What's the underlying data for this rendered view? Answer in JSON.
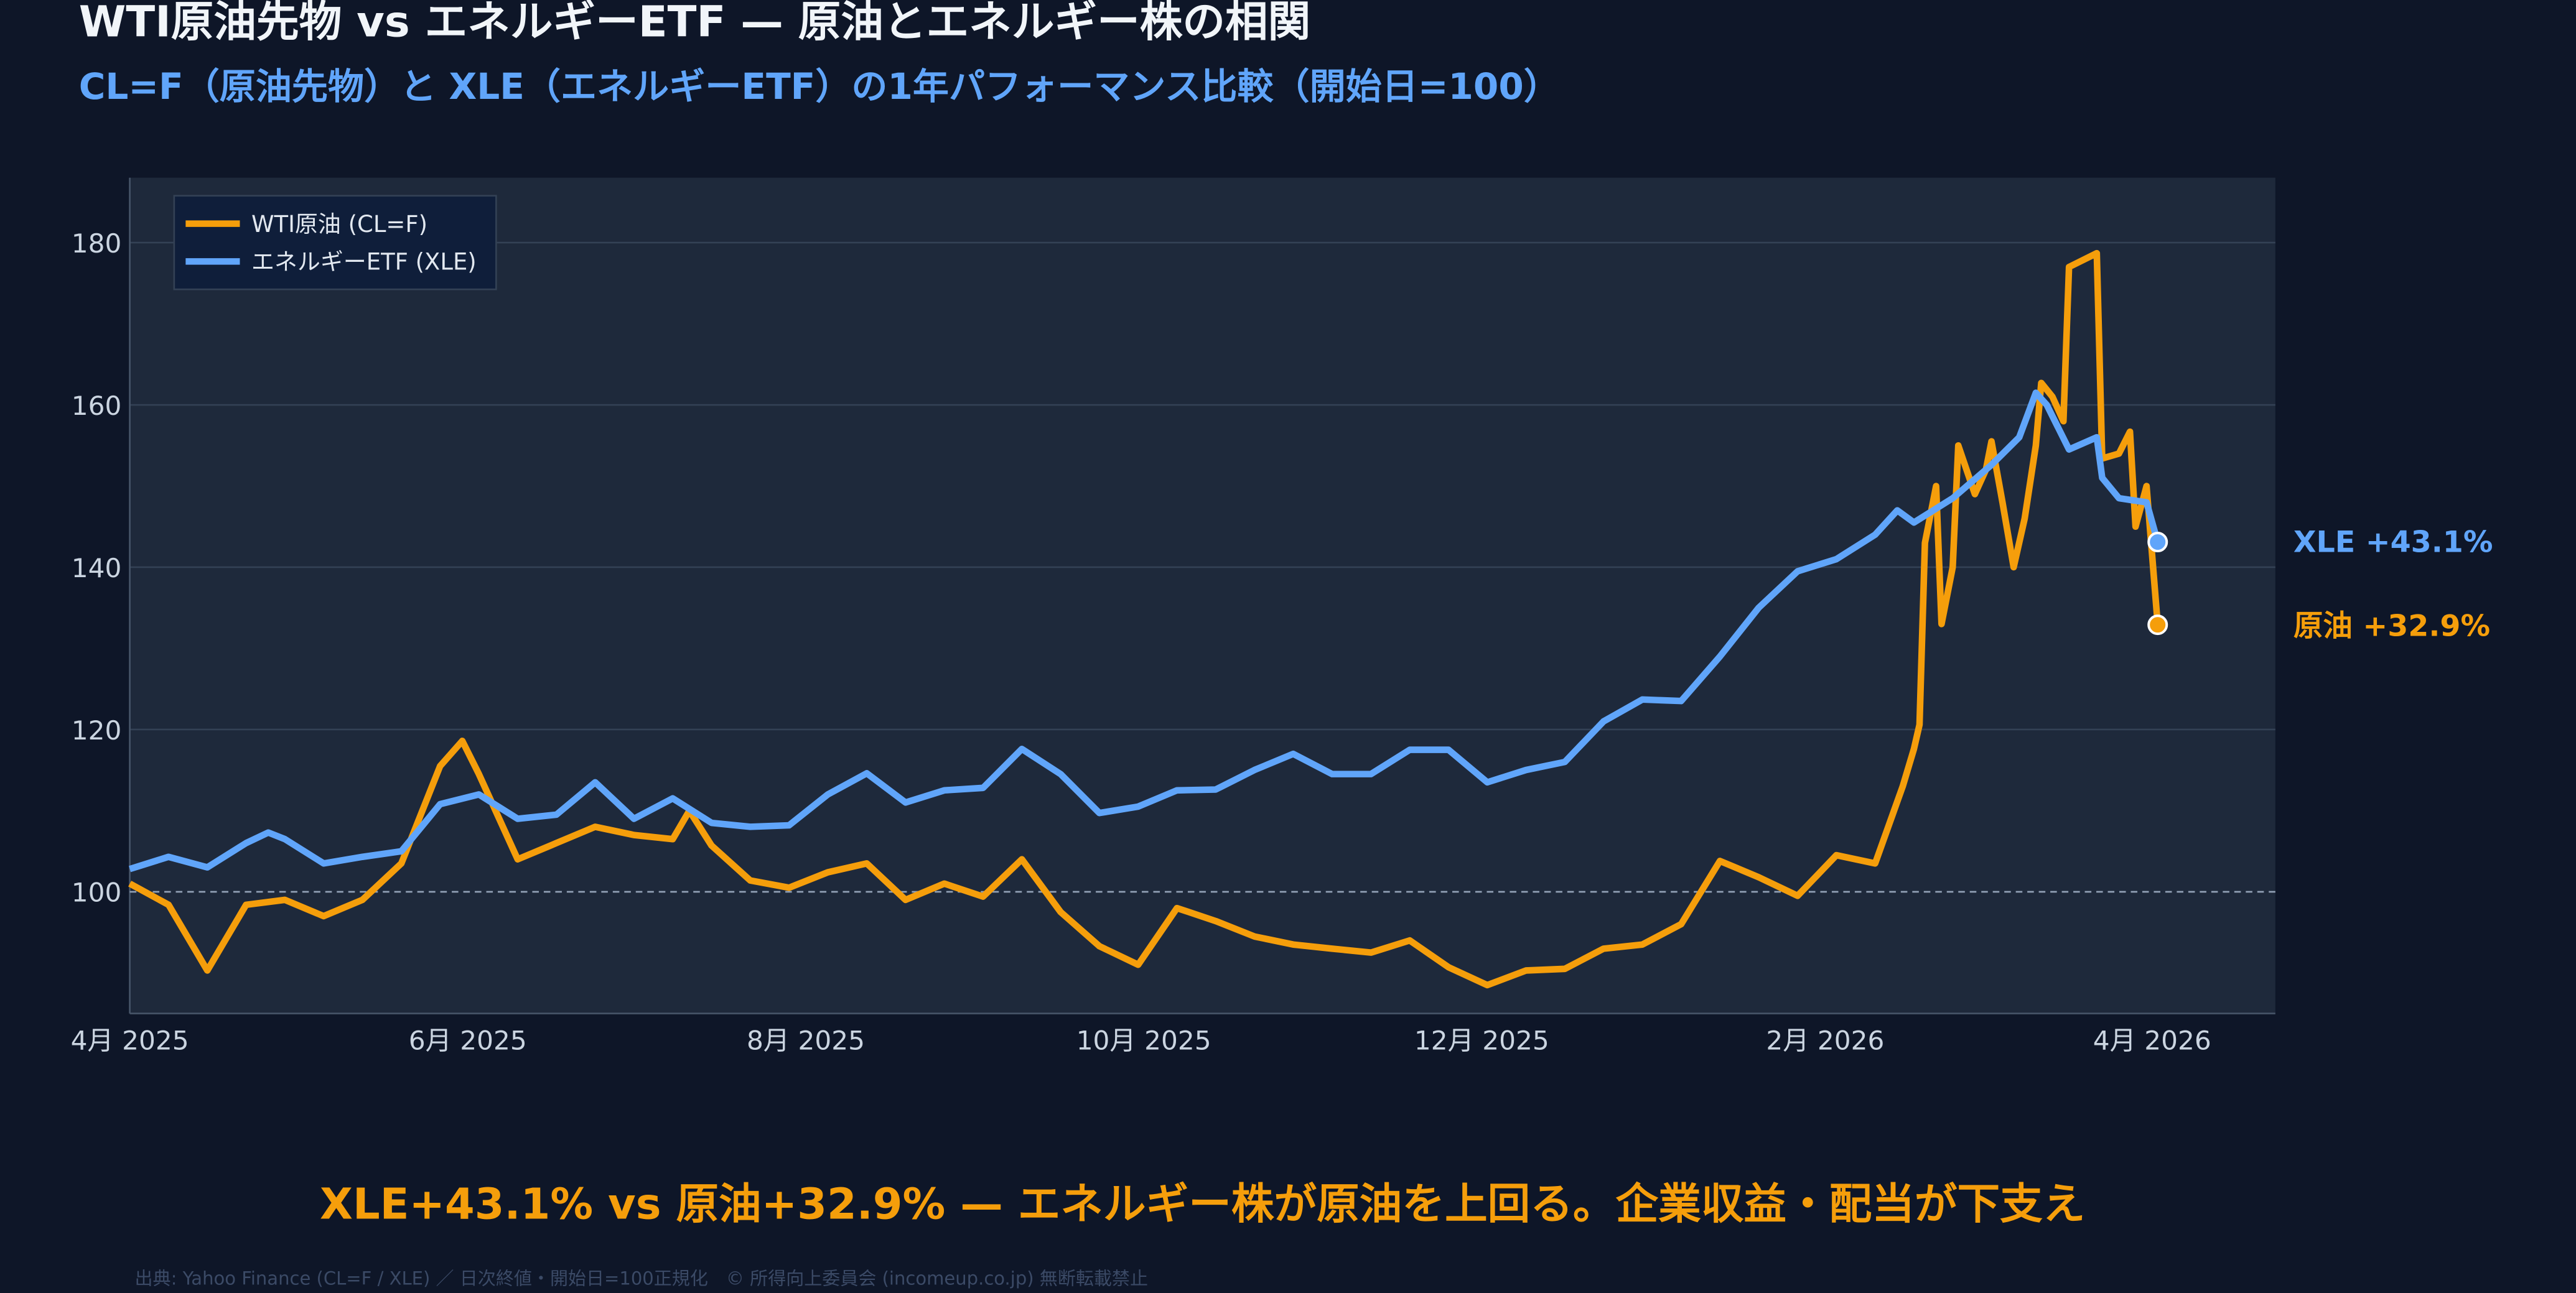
{
  "header": {
    "title": "WTI原油先物 vs エネルギーETF — 原油とエネルギー株の相関",
    "subtitle": "CL=F（原油先物）と XLE（エネルギーETF）の1年パフォーマンス比較（開始日=100）"
  },
  "headline": "XLE+43.1% vs 原油+32.9% — エネルギー株が原油を上回る。企業収益・配当が下支え",
  "footer": "出典: Yahoo Finance (CL=F / XLE) ／ 日次終値・開始日=100正規化　© 所得向上委員会 (incomeup.co.jp) 無断転載禁止",
  "colors": {
    "background": "#0e1628",
    "plot_bg": "#1e293b",
    "grid": "#334155",
    "wti": "#f59e0b",
    "xle": "#60a5fa",
    "title": "#f1f5f9"
  },
  "chart_data": {
    "type": "line",
    "title": "",
    "xlabel": "",
    "ylabel": "",
    "ylim": [
      85,
      188
    ],
    "xlim": [
      "2025-04-01",
      "2026-04-25"
    ],
    "grid": true,
    "legend_position": "top-left",
    "reference_line": 100,
    "yticks": [
      100,
      120,
      140,
      160,
      180
    ],
    "xticks": [
      {
        "date": "2025-04-01",
        "label": "4月 2025"
      },
      {
        "date": "2025-06-01",
        "label": "6月 2025"
      },
      {
        "date": "2025-08-01",
        "label": "8月 2025"
      },
      {
        "date": "2025-10-01",
        "label": "10月 2025"
      },
      {
        "date": "2025-12-01",
        "label": "12月 2025"
      },
      {
        "date": "2026-02-01",
        "label": "2月 2026"
      },
      {
        "date": "2026-04-01",
        "label": "4月 2026"
      }
    ],
    "series": [
      {
        "name": "WTI原油 (CL=F)",
        "color": "#f59e0b",
        "end_label": "原油 +32.9%",
        "points": [
          [
            "2025-04-01",
            101
          ],
          [
            "2025-04-08",
            98.4
          ],
          [
            "2025-04-15",
            90.3
          ],
          [
            "2025-04-22",
            98.4
          ],
          [
            "2025-04-29",
            99
          ],
          [
            "2025-05-06",
            97
          ],
          [
            "2025-05-13",
            99
          ],
          [
            "2025-05-20",
            103.5
          ],
          [
            "2025-05-27",
            115.5
          ],
          [
            "2025-05-31",
            118.6
          ],
          [
            "2025-06-03",
            114.5
          ],
          [
            "2025-06-10",
            104
          ],
          [
            "2025-06-17",
            106
          ],
          [
            "2025-06-24",
            108
          ],
          [
            "2025-07-01",
            107
          ],
          [
            "2025-07-08",
            106.5
          ],
          [
            "2025-07-11",
            110
          ],
          [
            "2025-07-15",
            105.7
          ],
          [
            "2025-07-22",
            101.4
          ],
          [
            "2025-07-29",
            100.5
          ],
          [
            "2025-08-05",
            102.4
          ],
          [
            "2025-08-12",
            103.5
          ],
          [
            "2025-08-19",
            99
          ],
          [
            "2025-08-26",
            101
          ],
          [
            "2025-09-02",
            99.4
          ],
          [
            "2025-09-09",
            104
          ],
          [
            "2025-09-16",
            97.5
          ],
          [
            "2025-09-23",
            93.3
          ],
          [
            "2025-09-30",
            91
          ],
          [
            "2025-10-07",
            98
          ],
          [
            "2025-10-14",
            96.4
          ],
          [
            "2025-10-21",
            94.5
          ],
          [
            "2025-10-28",
            93.5
          ],
          [
            "2025-11-04",
            93
          ],
          [
            "2025-11-11",
            92.5
          ],
          [
            "2025-11-18",
            94
          ],
          [
            "2025-11-25",
            90.7
          ],
          [
            "2025-12-02",
            88.5
          ],
          [
            "2025-12-09",
            90.3
          ],
          [
            "2025-12-16",
            90.5
          ],
          [
            "2025-12-23",
            93
          ],
          [
            "2025-12-30",
            93.5
          ],
          [
            "2026-01-06",
            96
          ],
          [
            "2026-01-13",
            103.8
          ],
          [
            "2026-01-20",
            101.8
          ],
          [
            "2026-01-27",
            99.5
          ],
          [
            "2026-02-03",
            104.5
          ],
          [
            "2026-02-10",
            103.5
          ],
          [
            "2026-02-15",
            113
          ],
          [
            "2026-02-17",
            117.6
          ],
          [
            "2026-02-18",
            120.6
          ],
          [
            "2026-02-19",
            143
          ],
          [
            "2026-02-21",
            150
          ],
          [
            "2026-02-22",
            133
          ],
          [
            "2026-02-24",
            140
          ],
          [
            "2026-02-25",
            155
          ],
          [
            "2026-02-27",
            151
          ],
          [
            "2026-02-28",
            149
          ],
          [
            "2026-03-02",
            152
          ],
          [
            "2026-03-03",
            155.5
          ],
          [
            "2026-03-05",
            148
          ],
          [
            "2026-03-07",
            140
          ],
          [
            "2026-03-09",
            146
          ],
          [
            "2026-03-11",
            155
          ],
          [
            "2026-03-12",
            162.7
          ],
          [
            "2026-03-14",
            161
          ],
          [
            "2026-03-16",
            158
          ],
          [
            "2026-03-17",
            177
          ],
          [
            "2026-03-22",
            178.7
          ],
          [
            "2026-03-23",
            153.4
          ],
          [
            "2026-03-26",
            154
          ],
          [
            "2026-03-28",
            156.7
          ],
          [
            "2026-03-29",
            145
          ],
          [
            "2026-03-31",
            150
          ],
          [
            "2026-04-02",
            132.9
          ]
        ]
      },
      {
        "name": "エネルギーETF (XLE)",
        "color": "#60a5fa",
        "end_label": "XLE +43.1%",
        "points": [
          [
            "2025-04-01",
            102.8
          ],
          [
            "2025-04-08",
            104.3
          ],
          [
            "2025-04-15",
            103
          ],
          [
            "2025-04-22",
            106
          ],
          [
            "2025-04-26",
            107.3
          ],
          [
            "2025-04-29",
            106.5
          ],
          [
            "2025-05-06",
            103.5
          ],
          [
            "2025-05-13",
            104.3
          ],
          [
            "2025-05-20",
            105
          ],
          [
            "2025-05-27",
            110.8
          ],
          [
            "2025-06-03",
            112
          ],
          [
            "2025-06-10",
            109
          ],
          [
            "2025-06-17",
            109.5
          ],
          [
            "2025-06-24",
            113.5
          ],
          [
            "2025-07-01",
            109
          ],
          [
            "2025-07-08",
            111.5
          ],
          [
            "2025-07-15",
            108.5
          ],
          [
            "2025-07-22",
            108
          ],
          [
            "2025-07-29",
            108.2
          ],
          [
            "2025-08-05",
            112
          ],
          [
            "2025-08-12",
            114.6
          ],
          [
            "2025-08-19",
            111
          ],
          [
            "2025-08-26",
            112.5
          ],
          [
            "2025-09-02",
            112.8
          ],
          [
            "2025-09-09",
            117.6
          ],
          [
            "2025-09-16",
            114.5
          ],
          [
            "2025-09-23",
            109.7
          ],
          [
            "2025-09-30",
            110.5
          ],
          [
            "2025-10-07",
            112.5
          ],
          [
            "2025-10-14",
            112.6
          ],
          [
            "2025-10-21",
            115
          ],
          [
            "2025-10-28",
            117
          ],
          [
            "2025-11-04",
            114.5
          ],
          [
            "2025-11-11",
            114.5
          ],
          [
            "2025-11-18",
            117.5
          ],
          [
            "2025-11-25",
            117.5
          ],
          [
            "2025-12-02",
            113.5
          ],
          [
            "2025-12-09",
            115
          ],
          [
            "2025-12-16",
            116
          ],
          [
            "2025-12-23",
            121
          ],
          [
            "2025-12-30",
            123.7
          ],
          [
            "2026-01-06",
            123.5
          ],
          [
            "2026-01-13",
            129
          ],
          [
            "2026-01-20",
            135
          ],
          [
            "2026-01-27",
            139.5
          ],
          [
            "2026-02-03",
            141
          ],
          [
            "2026-02-10",
            144
          ],
          [
            "2026-02-14",
            147
          ],
          [
            "2026-02-17",
            145.5
          ],
          [
            "2026-02-24",
            148.5
          ],
          [
            "2026-03-03",
            152.6
          ],
          [
            "2026-03-08",
            156
          ],
          [
            "2026-03-11",
            161.5
          ],
          [
            "2026-03-13",
            160
          ],
          [
            "2026-03-17",
            154.5
          ],
          [
            "2026-03-22",
            156
          ],
          [
            "2026-03-23",
            151
          ],
          [
            "2026-03-26",
            148.5
          ],
          [
            "2026-03-31",
            148
          ],
          [
            "2026-04-02",
            143.1
          ]
        ]
      }
    ]
  }
}
